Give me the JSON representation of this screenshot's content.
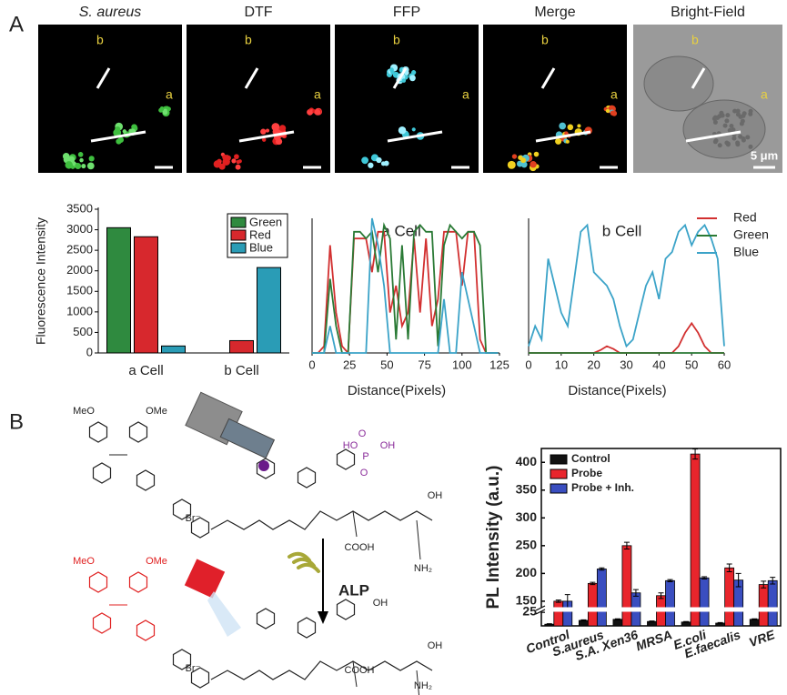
{
  "panel_labels": [
    "A",
    "B"
  ],
  "images": [
    {
      "title": "S. aureus"
    },
    {
      "title": "DTF"
    },
    {
      "title": "FFP"
    },
    {
      "title": "Merge"
    },
    {
      "title": "Bright-Field"
    }
  ],
  "cell_labels": [
    "a",
    "b"
  ],
  "scale_bar": "5 μm",
  "scheme": {
    "reagent": "ALP",
    "top_labels": [
      "MeO",
      "OMe",
      "Br⁻",
      "HO",
      "P",
      "OH",
      "O",
      "O",
      "OH",
      "COOH",
      "NH₂"
    ],
    "bottom_labels": [
      "MeO",
      "OMe",
      "Br⁻",
      "OH",
      "OH",
      "COOH",
      "NH₂"
    ]
  },
  "chart_data": [
    {
      "type": "bar",
      "ylabel": "Fluorescence Intensity",
      "categories": [
        "a Cell",
        "b Cell"
      ],
      "series": [
        {
          "name": "Green",
          "color": "#2f8a3f",
          "values": [
            3050,
            0
          ]
        },
        {
          "name": "Red",
          "color": "#d7282d",
          "values": [
            2830,
            300
          ]
        },
        {
          "name": "Blue",
          "color": "#2a9cb6",
          "values": [
            170,
            2080
          ]
        }
      ],
      "ylim": [
        0,
        3500
      ],
      "yticks": [
        0,
        500,
        1000,
        1500,
        2000,
        2500,
        3000,
        3500
      ],
      "legend": "upper right"
    },
    {
      "type": "line",
      "title": "a Cell",
      "xlabel": "Distance(Pixels)",
      "x": [
        0,
        4,
        8,
        12,
        16,
        20,
        24,
        28,
        32,
        36,
        40,
        44,
        48,
        52,
        56,
        60,
        64,
        68,
        72,
        76,
        80,
        84,
        88,
        92,
        96,
        100,
        104,
        108,
        112,
        116,
        120,
        124
      ],
      "series": [
        {
          "name": "Red",
          "color": "#d23030",
          "values": [
            0,
            0,
            5,
            80,
            30,
            5,
            0,
            85,
            85,
            85,
            60,
            90,
            90,
            30,
            50,
            20,
            30,
            85,
            30,
            85,
            20,
            40,
            90,
            90,
            90,
            50,
            90,
            90,
            10,
            0,
            0,
            0
          ]
        },
        {
          "name": "Green",
          "color": "#2a7a35",
          "values": [
            0,
            0,
            0,
            55,
            20,
            0,
            0,
            90,
            90,
            85,
            90,
            60,
            95,
            85,
            10,
            80,
            10,
            90,
            95,
            90,
            90,
            5,
            80,
            95,
            90,
            85,
            90,
            90,
            80,
            0,
            0,
            0
          ]
        },
        {
          "name": "Blue",
          "color": "#3ba3c8",
          "values": [
            0,
            0,
            0,
            20,
            0,
            0,
            0,
            0,
            0,
            0,
            100,
            80,
            50,
            0,
            0,
            0,
            0,
            0,
            0,
            0,
            0,
            0,
            40,
            0,
            0,
            60,
            40,
            20,
            0,
            0,
            0,
            0
          ]
        }
      ],
      "xlim": [
        0,
        125
      ],
      "xticks": [
        0,
        25,
        50,
        75,
        100,
        125
      ],
      "ylim": [
        0,
        100
      ],
      "legend": false
    },
    {
      "type": "line",
      "title": "b Cell",
      "xlabel": "Distance(Pixels)",
      "x": [
        0,
        2,
        4,
        6,
        8,
        10,
        12,
        14,
        16,
        18,
        20,
        22,
        24,
        26,
        28,
        30,
        32,
        34,
        36,
        38,
        40,
        42,
        44,
        46,
        48,
        50,
        52,
        54,
        56,
        58,
        60
      ],
      "series": [
        {
          "name": "Red",
          "color": "#d23030",
          "values": [
            0,
            0,
            0,
            0,
            0,
            0,
            0,
            0,
            0,
            0,
            0,
            2,
            5,
            3,
            0,
            0,
            0,
            0,
            0,
            0,
            0,
            0,
            0,
            5,
            15,
            22,
            15,
            5,
            0,
            0,
            0
          ]
        },
        {
          "name": "Green",
          "color": "#2a7a35",
          "values": [
            0,
            0,
            0,
            0,
            0,
            0,
            0,
            0,
            0,
            0,
            0,
            0,
            0,
            0,
            0,
            0,
            0,
            0,
            0,
            0,
            0,
            0,
            0,
            0,
            0,
            0,
            0,
            0,
            0,
            0,
            0
          ]
        },
        {
          "name": "Blue",
          "color": "#3ba3c8",
          "values": [
            5,
            20,
            10,
            70,
            50,
            30,
            20,
            55,
            90,
            95,
            60,
            55,
            50,
            40,
            20,
            5,
            10,
            30,
            50,
            60,
            40,
            70,
            75,
            90,
            95,
            80,
            90,
            95,
            85,
            70,
            5
          ]
        }
      ],
      "xlim": [
        0,
        60
      ],
      "xticks": [
        0,
        10,
        20,
        30,
        40,
        50,
        60
      ],
      "ylim": [
        0,
        100
      ],
      "legend": "upper right"
    },
    {
      "type": "errorbar",
      "ylabel": "PL Intensity (a.u.)",
      "categories": [
        "Control",
        "S.aureus",
        "S.A. Xen36",
        "MRSA",
        "E.coli",
        "E.faecalis",
        "VRE"
      ],
      "series": [
        {
          "name": "Control",
          "color": "#111111",
          "values": [
            3,
            10,
            12,
            8,
            7,
            5,
            12
          ],
          "errors": [
            1,
            1,
            1,
            1,
            1,
            1,
            1
          ]
        },
        {
          "name": "Probe",
          "color": "#e8252c",
          "values": [
            150,
            182,
            250,
            160,
            415,
            210,
            180
          ],
          "errors": [
            2,
            2,
            6,
            5,
            9,
            7,
            6
          ]
        },
        {
          "name": "Probe + Inh.",
          "color": "#3a4ec0",
          "values": [
            150,
            208,
            165,
            187,
            192,
            188,
            187
          ],
          "errors": [
            12,
            2,
            6,
            2,
            2,
            12,
            6
          ]
        }
      ],
      "ylim": [
        0,
        425
      ],
      "axis_break": [
        25,
        140
      ],
      "yticks": [
        25,
        150,
        200,
        250,
        300,
        350,
        400
      ],
      "legend": "upper left"
    }
  ]
}
